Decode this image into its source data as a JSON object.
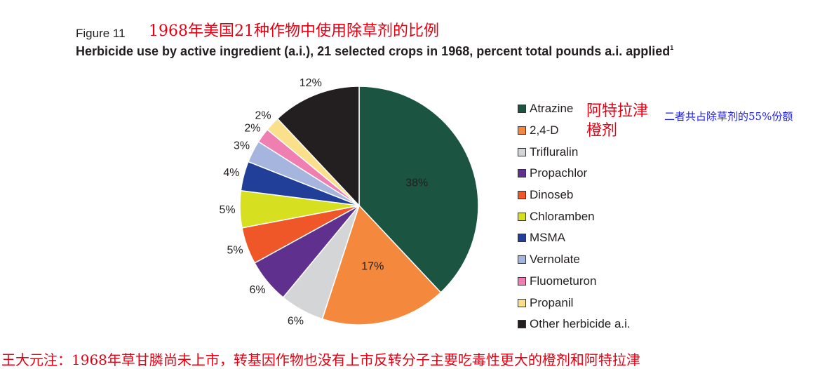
{
  "figure_label": "Figure 11",
  "title_cn": "1968年美国21种作物中使用除草剂的比例",
  "title": "Herbicide use by active ingredient (a.i.), 21 selected crops in 1968, percent total pounds a.i. applied",
  "title_footnote": "1",
  "annotations": {
    "atrazine_cn": "阿特拉津",
    "agent_orange_cn": "橙剂",
    "combined_share_cn": "二者共占除草剂的55%份额",
    "footer_note_cn": "王大元注：1968年草甘膦尚未上市，转基因作物也没有上市反转分子主要吃毒性更大的橙剂和阿特拉津"
  },
  "chart_data": {
    "type": "pie",
    "legend_position": "right",
    "start_angle_deg": 0,
    "direction": "clockwise",
    "slices": [
      {
        "label": "Atrazine",
        "value": 38,
        "display": "38%",
        "color": "#1b5440",
        "label_inside": true
      },
      {
        "label": "2,4-D",
        "value": 17,
        "display": "17%",
        "color": "#f4883c",
        "label_inside": true
      },
      {
        "label": "Trifluralin",
        "value": 6,
        "display": "6%",
        "color": "#d4d5d6",
        "label_inside": false
      },
      {
        "label": "Propachlor",
        "value": 6,
        "display": "6%",
        "color": "#60308f",
        "label_inside": false
      },
      {
        "label": "Dinoseb",
        "value": 5,
        "display": "5%",
        "color": "#ef5628",
        "label_inside": false
      },
      {
        "label": "Chloramben",
        "value": 5,
        "display": "5%",
        "color": "#d7df21",
        "label_inside": false
      },
      {
        "label": "MSMA",
        "value": 4,
        "display": "4%",
        "color": "#213f99",
        "label_inside": false
      },
      {
        "label": "Vernolate",
        "value": 3,
        "display": "3%",
        "color": "#a5b5de",
        "label_inside": false
      },
      {
        "label": "Fluometuron",
        "value": 2,
        "display": "2%",
        "color": "#ef7fb1",
        "label_inside": false
      },
      {
        "label": "Propanil",
        "value": 2,
        "display": "2%",
        "color": "#fbe08c",
        "label_inside": false
      },
      {
        "label": "Other herbicide a.i.",
        "value": 12,
        "display": "12%",
        "color": "#231f20",
        "label_inside": false
      }
    ]
  }
}
